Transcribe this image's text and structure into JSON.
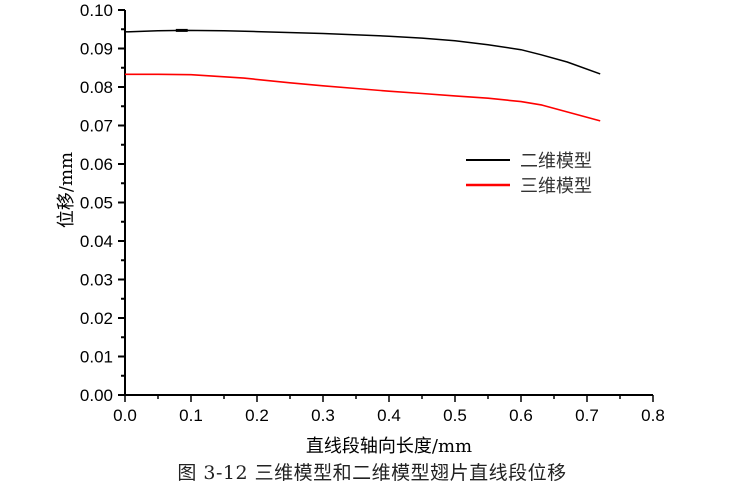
{
  "chart_data": {
    "type": "line",
    "title": "",
    "xlabel": "直线段轴向长度/mm",
    "ylabel": "位移/mm",
    "xlim": [
      0.0,
      0.8
    ],
    "ylim": [
      0.0,
      0.1
    ],
    "x_ticks": [
      "0.0",
      "0.1",
      "0.2",
      "0.3",
      "0.4",
      "0.5",
      "0.6",
      "0.7",
      "0.8"
    ],
    "y_ticks": [
      "0.00",
      "0.01",
      "0.02",
      "0.03",
      "0.04",
      "0.05",
      "0.06",
      "0.07",
      "0.08",
      "0.09",
      "0.10"
    ],
    "grid": false,
    "legend_position": "right-center inside plot",
    "series": [
      {
        "name": "二维模型",
        "color": "#000000",
        "x": [
          0.0,
          0.05,
          0.09,
          0.15,
          0.2,
          0.3,
          0.4,
          0.45,
          0.5,
          0.55,
          0.6,
          0.63,
          0.67,
          0.72
        ],
        "values": [
          0.0943,
          0.0946,
          0.0947,
          0.0946,
          0.0944,
          0.0939,
          0.0932,
          0.0927,
          0.092,
          0.091,
          0.0897,
          0.0884,
          0.0865,
          0.0834
        ]
      },
      {
        "name": "三维模型",
        "color": "#ff0000",
        "x": [
          0.0,
          0.05,
          0.1,
          0.18,
          0.25,
          0.3,
          0.35,
          0.4,
          0.45,
          0.5,
          0.55,
          0.6,
          0.632,
          0.72
        ],
        "values": [
          0.0833,
          0.0833,
          0.0832,
          0.0823,
          0.0811,
          0.0803,
          0.0796,
          0.0789,
          0.0783,
          0.0777,
          0.0771,
          0.0762,
          0.0753,
          0.0712
        ]
      }
    ]
  },
  "caption": "图 3-12  三维模型和二维模型翅片直线段位移",
  "legend": {
    "items": [
      {
        "label": "二维模型",
        "color": "#000000"
      },
      {
        "label": "三维模型",
        "color": "#ff0000"
      }
    ]
  }
}
